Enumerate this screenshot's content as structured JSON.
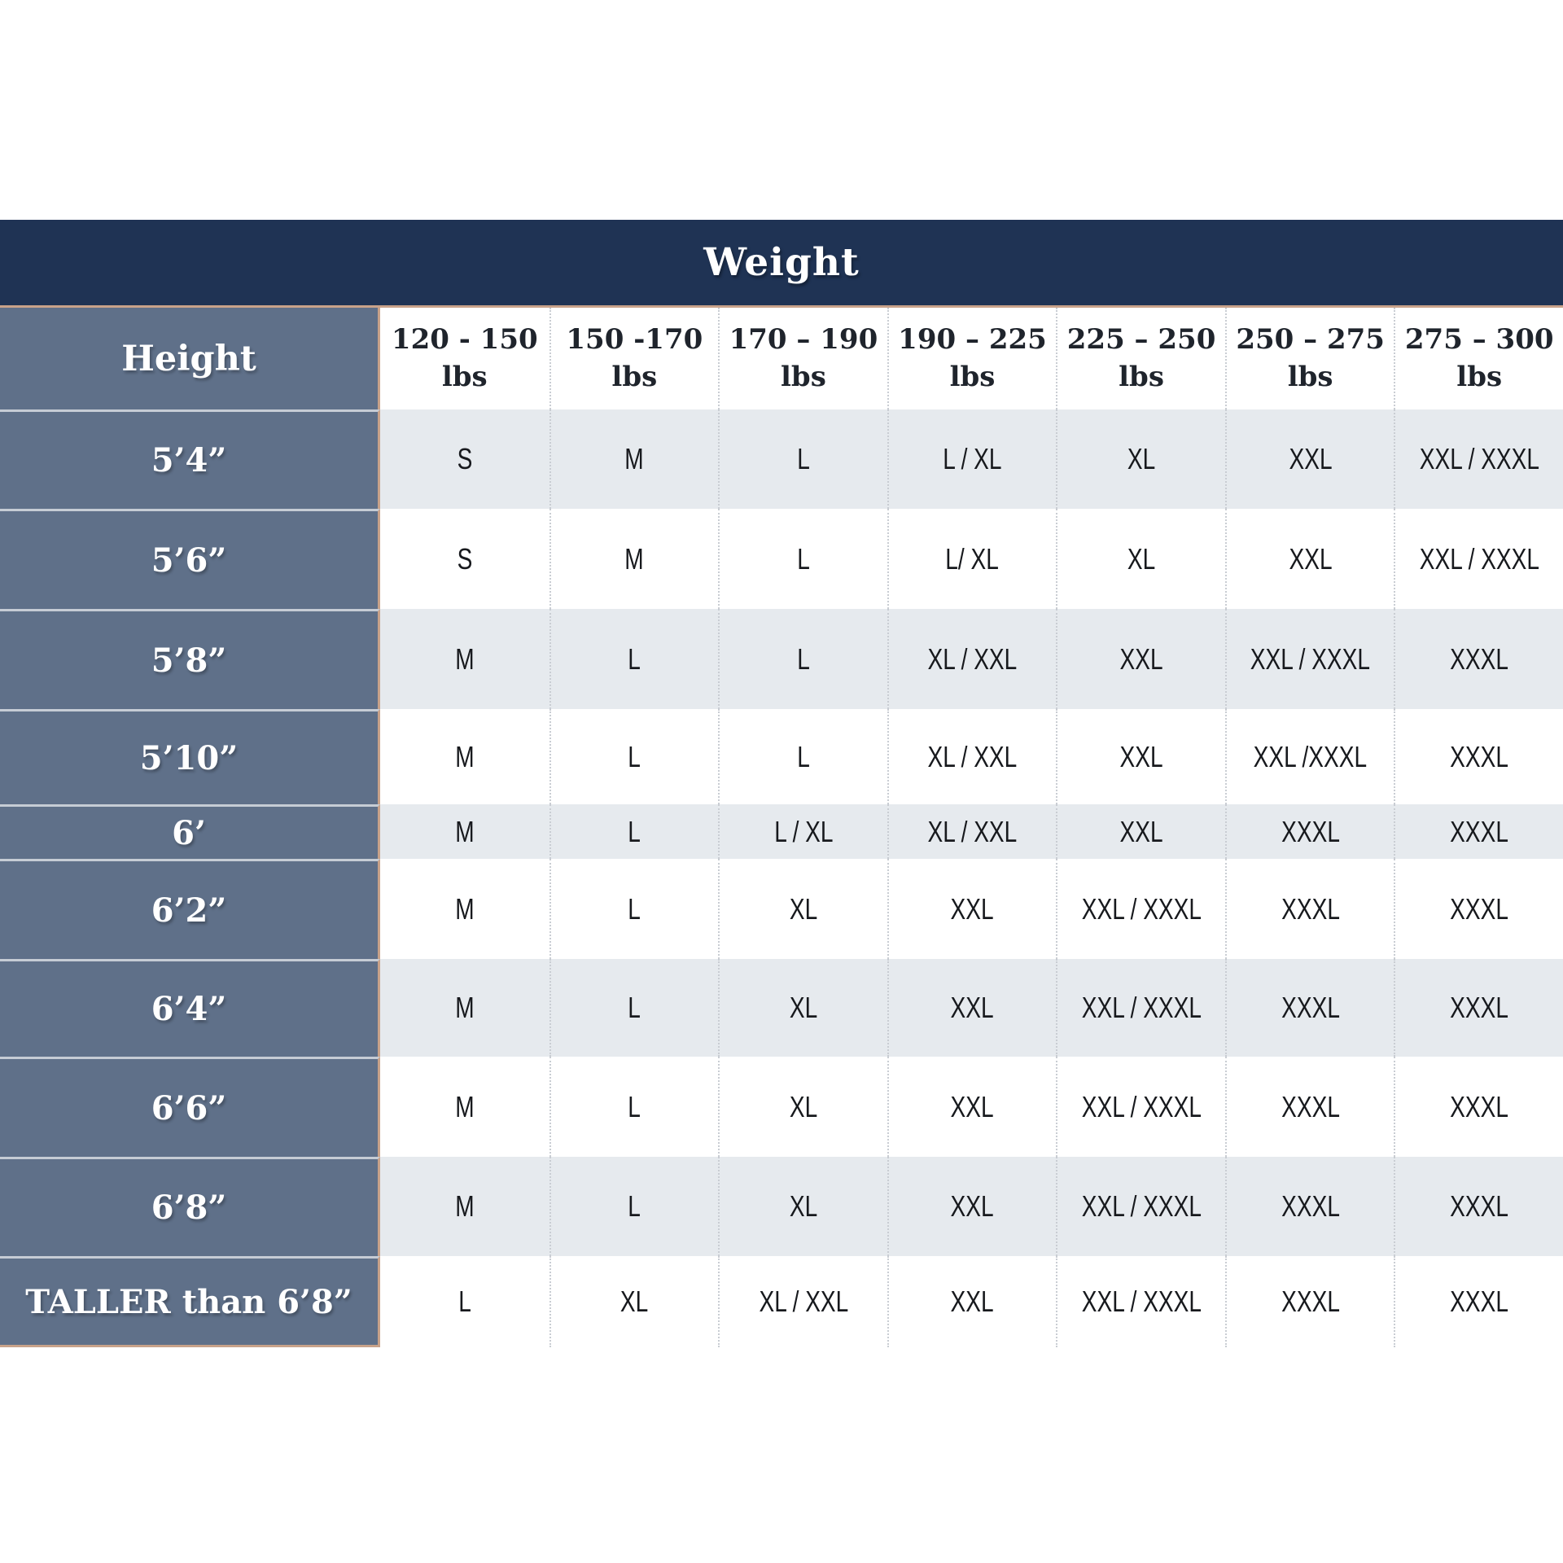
{
  "colors": {
    "header_navy": "#1f3354",
    "label_slate": "#5f7089",
    "row_light": "#e6eaee",
    "row_white": "#ffffff",
    "accent_tan": "#c8a28a"
  },
  "chart_data": {
    "type": "table",
    "title": "Weight",
    "row_axis_label": "Height",
    "columns": [
      {
        "range": "120 - 150",
        "unit": "lbs"
      },
      {
        "range": "150 -170",
        "unit": "lbs"
      },
      {
        "range": "170 – 190",
        "unit": "lbs"
      },
      {
        "range": "190 – 225",
        "unit": "lbs"
      },
      {
        "range": "225 – 250",
        "unit": "lbs"
      },
      {
        "range": "250 – 275",
        "unit": "lbs"
      },
      {
        "range": "275 – 300",
        "unit": "lbs"
      }
    ],
    "rows": [
      {
        "label": "5’4”",
        "shade": "light",
        "cells": [
          "S",
          "M",
          "L",
          "L / XL",
          "XL",
          "XXL",
          "XXL / XXXL"
        ]
      },
      {
        "label": "5’6”",
        "shade": "white",
        "cells": [
          "S",
          "M",
          "L",
          "L/ XL",
          "XL",
          "XXL",
          "XXL / XXXL"
        ]
      },
      {
        "label": "5’8”",
        "shade": "light",
        "cells": [
          "M",
          "L",
          "L",
          "XL / XXL",
          "XXL",
          "XXL / XXXL",
          "XXXL"
        ]
      },
      {
        "label": "5’10”",
        "shade": "white",
        "cells": [
          "M",
          "L",
          "L",
          "XL / XXL",
          "XXL",
          "XXL /XXXL",
          "XXXL"
        ]
      },
      {
        "label": "6’",
        "shade": "light",
        "cells": [
          "M",
          "L",
          "L / XL",
          "XL / XXL",
          "XXL",
          "XXXL",
          "XXXL"
        ]
      },
      {
        "label": "6’2”",
        "shade": "white",
        "cells": [
          "M",
          "L",
          "XL",
          "XXL",
          "XXL / XXXL",
          "XXXL",
          "XXXL"
        ]
      },
      {
        "label": "6’4”",
        "shade": "light",
        "cells": [
          "M",
          "L",
          "XL",
          "XXL",
          "XXL / XXXL",
          "XXXL",
          "XXXL"
        ]
      },
      {
        "label": "6’6”",
        "shade": "white",
        "cells": [
          "M",
          "L",
          "XL",
          "XXL",
          "XXL / XXXL",
          "XXXL",
          "XXXL"
        ]
      },
      {
        "label": "6’8”",
        "shade": "light",
        "cells": [
          "M",
          "L",
          "XL",
          "XXL",
          "XXL / XXXL",
          "XXXL",
          "XXXL"
        ]
      },
      {
        "label": "TALLER than 6’8”",
        "shade": "white",
        "cells": [
          "L",
          "XL",
          "XL / XXL",
          "XXL",
          "XXL / XXXL",
          "XXXL",
          "XXXL"
        ]
      }
    ]
  }
}
